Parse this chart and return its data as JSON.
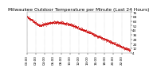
{
  "title": "Milwaukee Outdoor Temperature per Minute (Last 24 Hours)",
  "background_color": "#ffffff",
  "line_color": "#cc0000",
  "grid_color": "#aaaaaa",
  "ylim": [
    4,
    76
  ],
  "yticks": [
    4,
    12,
    20,
    28,
    36,
    44,
    52,
    60,
    68,
    76
  ],
  "xlim": [
    0,
    1440
  ],
  "num_points": 1440,
  "title_fontsize": 4.2,
  "tick_fontsize": 3.0,
  "temp_start": 68,
  "temp_end": 8
}
